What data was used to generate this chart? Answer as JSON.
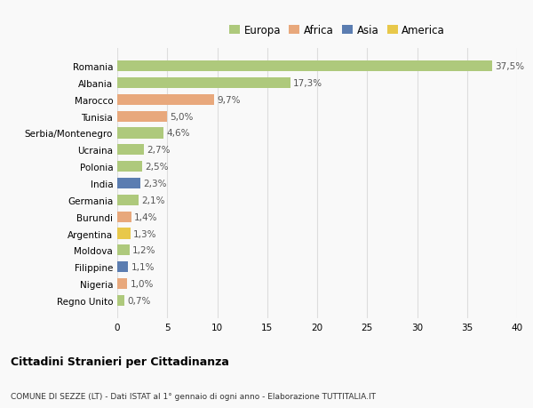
{
  "countries": [
    "Romania",
    "Albania",
    "Marocco",
    "Tunisia",
    "Serbia/Montenegro",
    "Ucraina",
    "Polonia",
    "India",
    "Germania",
    "Burundi",
    "Argentina",
    "Moldova",
    "Filippine",
    "Nigeria",
    "Regno Unito"
  ],
  "values": [
    37.5,
    17.3,
    9.7,
    5.0,
    4.6,
    2.7,
    2.5,
    2.3,
    2.1,
    1.4,
    1.3,
    1.2,
    1.1,
    1.0,
    0.7
  ],
  "labels": [
    "37,5%",
    "17,3%",
    "9,7%",
    "5,0%",
    "4,6%",
    "2,7%",
    "2,5%",
    "2,3%",
    "2,1%",
    "1,4%",
    "1,3%",
    "1,2%",
    "1,1%",
    "1,0%",
    "0,7%"
  ],
  "colors": [
    "#aec97c",
    "#aec97c",
    "#e8a87c",
    "#e8a87c",
    "#aec97c",
    "#aec97c",
    "#aec97c",
    "#5b7db1",
    "#aec97c",
    "#e8a87c",
    "#e8c84a",
    "#aec97c",
    "#5b7db1",
    "#e8a87c",
    "#aec97c"
  ],
  "legend": {
    "labels": [
      "Europa",
      "Africa",
      "Asia",
      "America"
    ],
    "colors": [
      "#aec97c",
      "#e8a87c",
      "#5b7db1",
      "#e8c84a"
    ]
  },
  "title": "Cittadini Stranieri per Cittadinanza",
  "subtitle": "COMUNE DI SEZZE (LT) - Dati ISTAT al 1° gennaio di ogni anno - Elaborazione TUTTITALIA.IT",
  "xlim": [
    0,
    40
  ],
  "xticks": [
    0,
    5,
    10,
    15,
    20,
    25,
    30,
    35,
    40
  ],
  "bg_color": "#f9f9f9",
  "grid_color": "#dddddd"
}
